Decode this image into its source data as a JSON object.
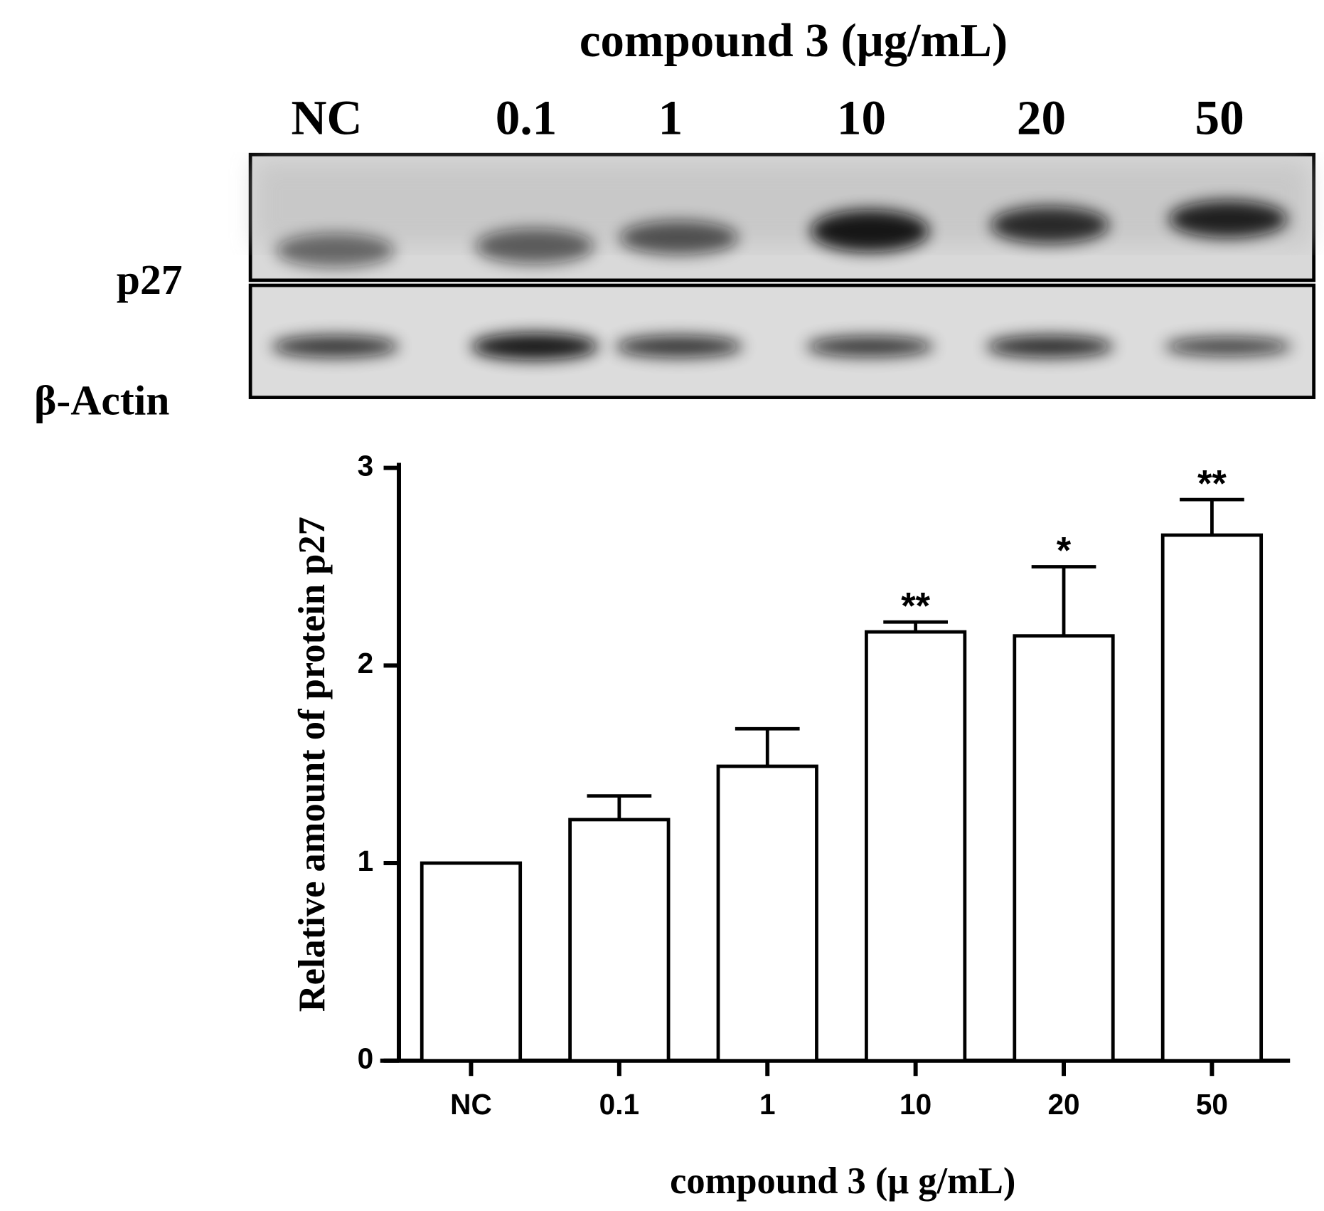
{
  "blot": {
    "title": "compound 3 (μg/mL)",
    "lanes": [
      "NC",
      "0.1",
      "1",
      "10",
      "20",
      "50"
    ],
    "rows": [
      "p27",
      "β-Actin"
    ]
  },
  "chart_data": {
    "type": "bar",
    "ylabel": "Relative amount of protein p27",
    "xlabel": "compound 3 (μ g/mL)",
    "categories": [
      "NC",
      "0.1",
      "1",
      "10",
      "20",
      "50"
    ],
    "values": [
      1,
      1.22,
      1.49,
      2.17,
      2.15,
      2.66
    ],
    "errors": [
      null,
      0.12,
      0.19,
      0.05,
      0.35,
      0.18
    ],
    "annotations": [
      null,
      null,
      null,
      "**",
      "*",
      "**"
    ],
    "color": "#ffffff",
    "ylim": [
      0,
      3
    ],
    "yticks": [
      0,
      1,
      2,
      3
    ]
  }
}
